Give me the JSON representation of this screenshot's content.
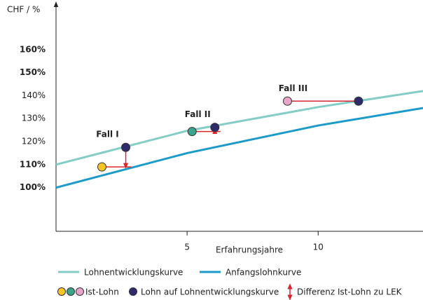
{
  "chart_data": {
    "type": "line",
    "y_label": "CHF / %",
    "x_label": "Erfahrungsjahre",
    "xlim": [
      0,
      14
    ],
    "ylim": [
      81,
      177
    ],
    "xticks": [
      5,
      10
    ],
    "yticks": [
      {
        "value": 100,
        "label": "100%",
        "bold": true
      },
      {
        "value": 110,
        "label": "110%",
        "bold": true
      },
      {
        "value": 120,
        "label": "120%",
        "bold": false
      },
      {
        "value": 130,
        "label": "130%",
        "bold": false
      },
      {
        "value": 140,
        "label": "140%",
        "bold": false
      },
      {
        "value": 150,
        "label": "150%",
        "bold": true
      },
      {
        "value": 160,
        "label": "160%",
        "bold": true
      }
    ],
    "series": [
      {
        "name": "Lohnentwicklungskurve",
        "color": "#84cdc6",
        "x": [
          0,
          5,
          10,
          14
        ],
        "values": [
          110,
          124.7,
          135,
          142
        ]
      },
      {
        "name": "Anfangslohnkurve",
        "color": "#1d9bc8",
        "x": [
          0,
          5,
          10,
          14
        ],
        "values": [
          100,
          115,
          127,
          134.6
        ]
      }
    ],
    "cases": [
      {
        "label": "Fall I",
        "ist": {
          "x": 1.75,
          "y": 109,
          "color": "#f6c52a"
        },
        "lek": {
          "x": 2.66,
          "y": 117.5
        }
      },
      {
        "label": "Fall II",
        "ist": {
          "x": 5.19,
          "y": 124.4,
          "color": "#3aa58c"
        },
        "lek": {
          "x": 6.06,
          "y": 126.2
        }
      },
      {
        "label": "Fall III",
        "ist": {
          "x": 8.83,
          "y": 137.6,
          "color": "#eaa3c9"
        },
        "lek": {
          "x": 11.54,
          "y": 137.6
        }
      }
    ],
    "lek_color": "#2e2a6b",
    "diff_color": "#d8262f",
    "point_legend": {
      "ist": "Ist-Lohn",
      "lek": "Lohn auf Lohnentwicklungskurve",
      "diff": "Differenz Ist-Lohn zu LEK"
    }
  }
}
